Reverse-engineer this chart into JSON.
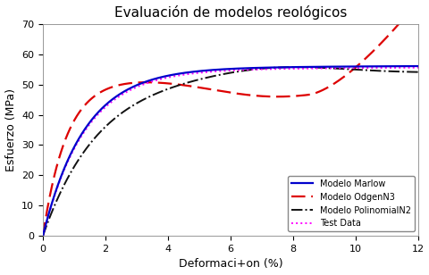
{
  "title": "Evaluación de modelos reológicos",
  "xlabel": "Deformaci+on (%)",
  "ylabel": "Esfuerzo (MPa)",
  "xlim": [
    0,
    12
  ],
  "ylim": [
    0,
    70
  ],
  "xticks": [
    0,
    2,
    4,
    6,
    8,
    10,
    12
  ],
  "yticks": [
    0,
    10,
    20,
    30,
    40,
    50,
    60,
    70
  ],
  "background_color": "#ffffff",
  "legend_entries": [
    "Modelo Marlow",
    "Modelo OdgenN3",
    "Modelo PolinomialN2",
    "Test Data"
  ],
  "marlow_color": "#0000cc",
  "odgen_color": "#dd0000",
  "polinomial_color": "#111111",
  "testdata_color": "#ff00ff",
  "title_fontsize": 11,
  "label_fontsize": 9,
  "tick_fontsize": 8,
  "legend_fontsize": 7
}
